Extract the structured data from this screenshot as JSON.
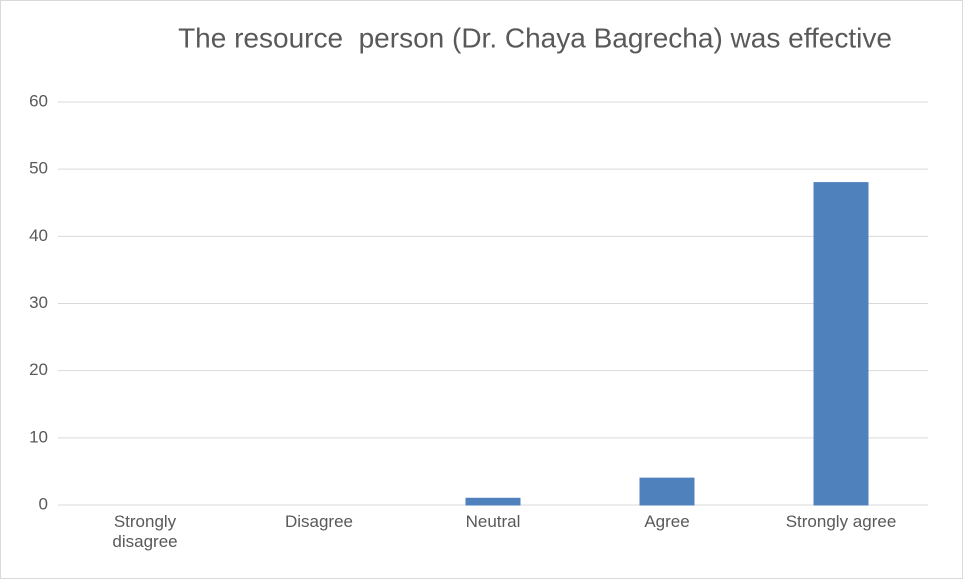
{
  "chart_data": {
    "type": "bar",
    "title": "The resource  person (Dr. Chaya Bagrecha) was effective",
    "categories": [
      "Strongly disagree",
      "Disagree",
      "Neutral",
      "Agree",
      "Strongly agree"
    ],
    "values": [
      0,
      0,
      1,
      4,
      48
    ],
    "color": "#4f81bd",
    "ylim": [
      0,
      60
    ],
    "yticks": [
      0,
      10,
      20,
      30,
      40,
      50,
      60
    ],
    "grid": true
  }
}
